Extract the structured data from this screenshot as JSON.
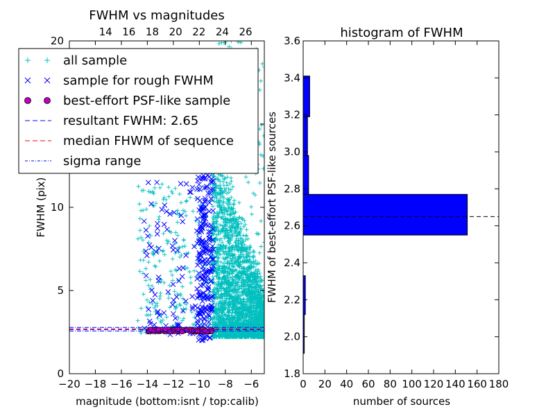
{
  "chart_data": [
    {
      "type": "scatter",
      "title": "FWHM vs magnitudes",
      "xlabel": "magnitude (bottom:isnt / top:calib)",
      "ylabel": "FWHM (pix)",
      "xlim": [
        -20,
        -5
      ],
      "ylim": [
        0,
        20
      ],
      "x_ticks": [
        -20,
        -18,
        -16,
        -14,
        -12,
        -10,
        -8,
        -6
      ],
      "x_tick_labels": [
        "−20",
        "−18",
        "−16",
        "−14",
        "−12",
        "−10",
        "−8",
        "−6"
      ],
      "y_ticks": [
        0,
        5,
        10,
        15,
        20
      ],
      "y_tick_labels": [
        "0",
        "5",
        "10",
        "",
        "20"
      ],
      "top_xlim": [
        10.9,
        27.6
      ],
      "top_ticks": [
        14,
        16,
        18,
        20,
        22,
        24,
        26
      ],
      "top_tick_labels": [
        "14",
        "16",
        "18",
        "20",
        "22",
        "24",
        "26"
      ],
      "grid": false,
      "legend_position": "top-left",
      "series": [
        {
          "name": "all sample",
          "marker": "+",
          "color": "#00BFBF",
          "x_range": [
            -14.8,
            -5
          ],
          "y_range": [
            1.8,
            20
          ]
        },
        {
          "name": "sample for rough FWHM",
          "marker": "x",
          "color": "#0000FF",
          "x_range": [
            -14.3,
            -8.9
          ],
          "y_range": [
            1.9,
            20
          ]
        },
        {
          "name": "best-effort PSF-like sample",
          "marker": "o",
          "color": "#BF00BF",
          "x_range": [
            -14,
            -9
          ],
          "y_range": [
            2.55,
            2.8
          ]
        },
        {
          "name": "resultant FWHM: 2.65",
          "style": "dashed",
          "color": "#0000FF",
          "y": 2.65
        },
        {
          "name": "median FHWM of sequence",
          "style": "dashed",
          "color": "#FF0000",
          "y": 2.7
        },
        {
          "name": "sigma range",
          "style": "dashdot",
          "color": "#0000FF",
          "y": [
            2.57,
            2.78
          ]
        }
      ]
    },
    {
      "type": "bar",
      "orientation": "horizontal",
      "title": "histogram of FWHM",
      "xlabel": "number of sources",
      "ylabel": "FWHM of best-effort PSF-like sources",
      "xlim": [
        0,
        180
      ],
      "ylim": [
        1.8,
        3.6
      ],
      "x_ticks": [
        0,
        20,
        40,
        60,
        80,
        100,
        120,
        140,
        160,
        180
      ],
      "y_ticks": [
        1.8,
        2.0,
        2.2,
        2.4,
        2.6,
        2.8,
        3.0,
        3.2,
        3.4,
        3.6
      ],
      "y_tick_labels": [
        "1.8",
        "2.0",
        "2.2",
        "2.4",
        "2.6",
        "2.8",
        "3.0",
        "3.2",
        "3.4",
        "3.6"
      ],
      "bars": [
        {
          "y_low": 1.91,
          "y_high": 2.12,
          "value": 1
        },
        {
          "y_low": 2.12,
          "y_high": 2.33,
          "value": 2
        },
        {
          "y_low": 2.55,
          "y_high": 2.77,
          "value": 151
        },
        {
          "y_low": 2.77,
          "y_high": 2.98,
          "value": 5
        },
        {
          "y_low": 2.98,
          "y_high": 3.19,
          "value": 4
        },
        {
          "y_low": 3.19,
          "y_high": 3.41,
          "value": 6
        }
      ],
      "bar_color": "#0000FF",
      "reference_line": {
        "y": 2.65,
        "style": "dashed",
        "color": "#000000"
      },
      "grid": false
    }
  ]
}
